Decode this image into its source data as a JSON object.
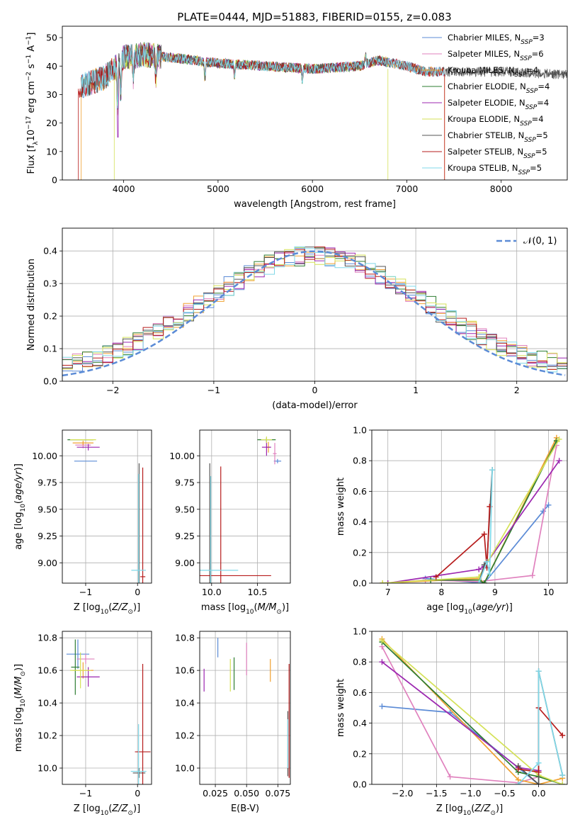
{
  "figure": {
    "title": "PLATE=0444, MJD=51883, FIBERID=0155, z=0.083"
  },
  "colors": {
    "chabrier_miles": "#5b8bd6",
    "salpeter_miles": "#e082be",
    "kroupa_miles": "#f0a030",
    "chabrier_elodie": "#2e7d32",
    "salpeter_elodie": "#9c27b0",
    "kroupa_elodie": "#d4e157",
    "chabrier_stelib": "#555555",
    "salpeter_stelib": "#b71c1c",
    "kroupa_stelib": "#80d8e8",
    "normal_curve": "#5b8bd6"
  },
  "chart_data": [
    {
      "id": "spectrum",
      "type": "line",
      "title": "PLATE=0444, MJD=51883, FIBERID=0155, z=0.083",
      "xlabel": "wavelength [Angstrom, rest frame]",
      "ylabel": "Flux [f_λ 10^-17 erg cm^-2 s^-1 A^-1]",
      "xlim": [
        3350,
        8700
      ],
      "ylim": [
        0,
        54
      ],
      "xticks": [
        4000,
        5000,
        6000,
        7000,
        8000
      ],
      "yticks": [
        0,
        10,
        20,
        30,
        40,
        50
      ],
      "grid": false,
      "legend_position": "top-right",
      "series": [
        {
          "name": "Chabrier MILES, N_SSP=3",
          "key": "chabrier_miles",
          "x_range": [
            3550,
            7400
          ]
        },
        {
          "name": "Salpeter MILES, N_SSP=6",
          "key": "salpeter_miles",
          "x_range": [
            3550,
            7400
          ]
        },
        {
          "name": "Kroupa MILES, N_SSP=4",
          "key": "kroupa_miles",
          "x_range": [
            3550,
            7400
          ]
        },
        {
          "name": "Chabrier ELODIE, N_SSP=4",
          "key": "chabrier_elodie",
          "x_range": [
            3900,
            6800
          ]
        },
        {
          "name": "Salpeter ELODIE, N_SSP=4",
          "key": "salpeter_elodie",
          "x_range": [
            3900,
            6800
          ]
        },
        {
          "name": "Kroupa ELODIE, N_SSP=4",
          "key": "kroupa_elodie",
          "x_range": [
            3900,
            6800
          ]
        },
        {
          "name": "Chabrier STELIB, N_SSP=5",
          "key": "chabrier_stelib",
          "x_range": [
            3550,
            8700
          ]
        },
        {
          "name": "Salpeter STELIB, N_SSP=5",
          "key": "salpeter_stelib",
          "x_range": [
            3520,
            7400
          ]
        },
        {
          "name": "Kroupa STELIB, N_SSP=5",
          "key": "kroupa_stelib",
          "x_range": [
            3550,
            7400
          ]
        }
      ],
      "continuum": {
        "x": [
          3550,
          3800,
          4000,
          4200,
          4500,
          5000,
          5500,
          6000,
          6500,
          6700,
          7000,
          7200,
          7400,
          8000,
          8700
        ],
        "y": [
          33,
          36,
          43,
          44,
          43,
          41,
          40,
          39,
          40,
          42,
          40,
          38,
          38,
          38,
          37
        ]
      }
    },
    {
      "id": "residuals",
      "type": "line",
      "xlabel": "(data-model)/error",
      "ylabel": "Normed distribution",
      "xlim": [
        -2.5,
        2.5
      ],
      "ylim": [
        0,
        0.47
      ],
      "xticks": [
        -2,
        -1,
        0,
        1,
        2
      ],
      "yticks": [
        0.0,
        0.1,
        0.2,
        0.3,
        0.4
      ],
      "grid": true,
      "legend": "𝒩(0, 1)",
      "legend_position": "top-right",
      "normal": {
        "mean": 0,
        "sigma": 1
      }
    },
    {
      "id": "age_vs_Z",
      "type": "scatter",
      "xlabel": "Z [log10(Z/Z⊙)]",
      "ylabel": "age  [log10(age/yr)]",
      "xlim": [
        -1.45,
        0.27
      ],
      "ylim": [
        8.81,
        10.24
      ],
      "xticks": [
        -1,
        0
      ],
      "yticks": [
        9.0,
        9.25,
        9.5,
        9.75,
        10.0
      ],
      "grid": true,
      "points": [
        {
          "key": "chabrier_miles",
          "x": -1.0,
          "y": 9.95,
          "xerr": 0.22,
          "yerr": 0.0
        },
        {
          "key": "salpeter_miles",
          "x": -1.05,
          "y": 10.1,
          "xerr": 0.15,
          "yerr": 0.03
        },
        {
          "key": "kroupa_miles",
          "x": -1.05,
          "y": 10.12,
          "xerr": 0.2,
          "yerr": 0.02
        },
        {
          "key": "chabrier_elodie",
          "x": -1.1,
          "y": 10.15,
          "xerr": 0.25,
          "yerr": 0.0
        },
        {
          "key": "salpeter_elodie",
          "x": -0.95,
          "y": 10.08,
          "xerr": 0.22,
          "yerr": 0.03
        },
        {
          "key": "kroupa_elodie",
          "x": -1.05,
          "y": 10.15,
          "xerr": 0.25,
          "yerr": 0.0
        },
        {
          "key": "chabrier_stelib",
          "x": 0.03,
          "y": 9.0,
          "xerr": 0.01,
          "yerr": 0.93
        },
        {
          "key": "salpeter_stelib",
          "x": 0.1,
          "y": 8.87,
          "xerr": 0.05,
          "yerr": 1.02
        },
        {
          "key": "kroupa_stelib",
          "x": 0.02,
          "y": 8.93,
          "xerr": 0.14,
          "yerr": 0.9
        }
      ]
    },
    {
      "id": "age_vs_mass",
      "type": "scatter",
      "xlabel": "mass [log10(M/M⊙)]",
      "ylabel": "",
      "xlim": [
        9.87,
        10.86
      ],
      "ylim": [
        8.81,
        10.24
      ],
      "xticks": [
        10.0,
        10.5
      ],
      "yticks": [
        9.0,
        9.25,
        9.5,
        9.75,
        10.0
      ],
      "grid": true,
      "points": [
        {
          "key": "chabrier_miles",
          "x": 10.72,
          "y": 9.95,
          "xerr": 0.04,
          "yerr": 0.02
        },
        {
          "key": "salpeter_miles",
          "x": 10.69,
          "y": 10.02,
          "xerr": 0.02,
          "yerr": 0.1
        },
        {
          "key": "kroupa_miles",
          "x": 10.62,
          "y": 10.08,
          "xerr": 0.02,
          "yerr": 0.05
        },
        {
          "key": "chabrier_elodie",
          "x": 10.6,
          "y": 10.15,
          "xerr": 0.1,
          "yerr": 0.02
        },
        {
          "key": "salpeter_elodie",
          "x": 10.6,
          "y": 10.08,
          "xerr": 0.05,
          "yerr": 0.08
        },
        {
          "key": "kroupa_elodie",
          "x": 10.6,
          "y": 10.15,
          "xerr": 0.06,
          "yerr": 0.03
        },
        {
          "key": "chabrier_stelib",
          "x": 9.98,
          "y": 8.93,
          "xerr": 0.01,
          "yerr": 1.0
        },
        {
          "key": "salpeter_stelib",
          "x": 10.1,
          "y": 8.88,
          "xerr": 0.55,
          "yerr": 1.02
        },
        {
          "key": "kroupa_stelib",
          "x": 9.99,
          "y": 8.93,
          "xerr": 0.3,
          "yerr": 0.88
        }
      ]
    },
    {
      "id": "weight_vs_age",
      "type": "line",
      "xlabel": "age  [log10(age/yr)]",
      "ylabel": "mass weight",
      "xlim": [
        6.7,
        10.35
      ],
      "ylim": [
        0,
        1.0
      ],
      "xticks": [
        7,
        8,
        9,
        10
      ],
      "yticks": [
        0.0,
        0.2,
        0.4,
        0.6,
        0.8,
        1.0
      ],
      "grid": true,
      "series": [
        {
          "key": "chabrier_miles",
          "x": [
            7.7,
            8.8,
            9.9,
            10.0
          ],
          "y": [
            0.03,
            0.0,
            0.47,
            0.51
          ]
        },
        {
          "key": "salpeter_miles",
          "x": [
            7.0,
            7.7,
            8.7,
            9.7,
            10.15
          ],
          "y": [
            0.0,
            0.02,
            0.01,
            0.05,
            0.9
          ]
        },
        {
          "key": "kroupa_miles",
          "x": [
            6.9,
            8.7,
            8.8,
            10.15
          ],
          "y": [
            0.0,
            0.03,
            0.0,
            0.95
          ]
        },
        {
          "key": "chabrier_elodie",
          "x": [
            7.8,
            8.7,
            8.8,
            10.15
          ],
          "y": [
            0.02,
            0.02,
            0.0,
            0.93
          ]
        },
        {
          "key": "salpeter_elodie",
          "x": [
            7.0,
            8.7,
            8.8,
            10.2
          ],
          "y": [
            0.0,
            0.09,
            0.11,
            0.8
          ]
        },
        {
          "key": "kroupa_elodie",
          "x": [
            6.9,
            8.7,
            10.2
          ],
          "y": [
            0.0,
            0.04,
            0.94
          ]
        },
        {
          "key": "chabrier_stelib",
          "x": [
            8.7,
            8.8,
            8.85,
            8.95
          ],
          "y": [
            0.0,
            0.12,
            0.14,
            0.74
          ]
        },
        {
          "key": "salpeter_stelib",
          "x": [
            7.9,
            8.8,
            8.85,
            8.9
          ],
          "y": [
            0.04,
            0.32,
            0.1,
            0.5
          ]
        },
        {
          "key": "kroupa_stelib",
          "x": [
            8.7,
            8.85,
            8.9,
            8.95
          ],
          "y": [
            0.0,
            0.14,
            0.06,
            0.74
          ]
        }
      ]
    },
    {
      "id": "mass_vs_Z",
      "type": "scatter",
      "xlabel": "Z [log10(Z/Z⊙)]",
      "ylabel": "mass [log10(M/M⊙)]",
      "xlim": [
        -1.45,
        0.27
      ],
      "ylim": [
        9.9,
        10.84
      ],
      "xticks": [
        -1,
        0
      ],
      "yticks": [
        10.0,
        10.2,
        10.4,
        10.6,
        10.8
      ],
      "grid": true,
      "points": [
        {
          "key": "chabrier_miles",
          "x": -1.15,
          "y": 10.7,
          "xerr": 0.22,
          "yerr": 0.09
        },
        {
          "key": "salpeter_miles",
          "x": -1.0,
          "y": 10.67,
          "xerr": 0.17,
          "yerr": 0.03
        },
        {
          "key": "kroupa_miles",
          "x": -1.05,
          "y": 10.6,
          "xerr": 0.2,
          "yerr": 0.05
        },
        {
          "key": "chabrier_elodie",
          "x": -1.2,
          "y": 10.62,
          "xerr": 0.08,
          "yerr": 0.17
        },
        {
          "key": "salpeter_elodie",
          "x": -0.95,
          "y": 10.56,
          "xerr": 0.22,
          "yerr": 0.06
        },
        {
          "key": "kroupa_elodie",
          "x": -1.1,
          "y": 10.6,
          "xerr": 0.2,
          "yerr": 0.11
        },
        {
          "key": "chabrier_stelib",
          "x": 0.03,
          "y": 9.97,
          "xerr": 0.12,
          "yerr": 0.03
        },
        {
          "key": "salpeter_stelib",
          "x": 0.1,
          "y": 10.1,
          "xerr": 0.15,
          "yerr": 0.54
        },
        {
          "key": "kroupa_stelib",
          "x": 0.02,
          "y": 9.98,
          "xerr": 0.15,
          "yerr": 0.29
        }
      ]
    },
    {
      "id": "mass_vs_ebv",
      "type": "scatter",
      "xlabel": "E(B-V)",
      "ylabel": "",
      "xlim": [
        0.0125,
        0.085
      ],
      "ylim": [
        9.9,
        10.84
      ],
      "xticks": [
        0.025,
        0.05,
        0.075
      ],
      "xticklabels": [
        "0.025",
        "0.050",
        "0.075"
      ],
      "yticks": [
        10.0,
        10.2,
        10.4,
        10.6,
        10.8
      ],
      "grid": true,
      "points": [
        {
          "key": "chabrier_miles",
          "x": 0.027,
          "y": 10.74,
          "xerr": 0.0,
          "yerr": 0.06
        },
        {
          "key": "salpeter_miles",
          "x": 0.05,
          "y": 10.67,
          "xerr": 0.0,
          "yerr": 0.1
        },
        {
          "key": "kroupa_miles",
          "x": 0.069,
          "y": 10.6,
          "xerr": 0.0,
          "yerr": 0.07
        },
        {
          "key": "chabrier_elodie",
          "x": 0.04,
          "y": 10.58,
          "xerr": 0.0,
          "yerr": 0.1
        },
        {
          "key": "salpeter_elodie",
          "x": 0.016,
          "y": 10.54,
          "xerr": 0.0,
          "yerr": 0.07
        },
        {
          "key": "kroupa_elodie",
          "x": 0.037,
          "y": 10.57,
          "xerr": 0.0,
          "yerr": 0.1
        },
        {
          "key": "chabrier_stelib",
          "x": 0.083,
          "y": 10.15,
          "xerr": 0.0,
          "yerr": 0.2
        },
        {
          "key": "salpeter_stelib",
          "x": 0.084,
          "y": 10.29,
          "xerr": 0.0,
          "yerr": 0.35
        },
        {
          "key": "kroupa_stelib",
          "x": 0.083,
          "y": 10.15,
          "xerr": 0.0,
          "yerr": 0.15
        }
      ]
    },
    {
      "id": "weight_vs_Z",
      "type": "line",
      "xlabel": "Z [log10(Z/Z⊙)]",
      "ylabel": "mass weight",
      "xlim": [
        -2.45,
        0.42
      ],
      "ylim": [
        0,
        1.0
      ],
      "xticks": [
        -2.0,
        -1.5,
        -1.0,
        -0.5,
        0.0
      ],
      "yticks": [
        0.0,
        0.2,
        0.4,
        0.6,
        0.8,
        1.0
      ],
      "grid": true,
      "series": [
        {
          "key": "chabrier_miles",
          "x": [
            -2.3,
            -1.3,
            0.0
          ],
          "y": [
            0.51,
            0.47,
            0.0
          ]
        },
        {
          "key": "salpeter_miles",
          "x": [
            -2.3,
            -1.3,
            -0.3,
            0.0
          ],
          "y": [
            0.9,
            0.05,
            0.01,
            0.05
          ]
        },
        {
          "key": "kroupa_miles",
          "x": [
            -2.3,
            -0.3,
            0.0,
            0.35
          ],
          "y": [
            0.95,
            0.03,
            0.0,
            0.04
          ]
        },
        {
          "key": "chabrier_elodie",
          "x": [
            -2.3,
            -0.3,
            0.0,
            0.35
          ],
          "y": [
            0.93,
            0.08,
            0.05,
            0.0
          ]
        },
        {
          "key": "salpeter_elodie",
          "x": [
            -2.3,
            -0.3,
            0.0
          ],
          "y": [
            0.8,
            0.11,
            0.09
          ]
        },
        {
          "key": "kroupa_elodie",
          "x": [
            -2.3,
            0.0,
            0.35
          ],
          "y": [
            0.94,
            0.06,
            0.0
          ]
        },
        {
          "key": "chabrier_stelib",
          "x": [
            -0.3,
            0.0,
            0.0,
            0.35
          ],
          "y": [
            0.12,
            0.0,
            0.74,
            0.06
          ]
        },
        {
          "key": "salpeter_stelib",
          "x": [
            -0.3,
            0.0,
            0.0,
            0.35
          ],
          "y": [
            0.1,
            0.08,
            0.5,
            0.32
          ]
        },
        {
          "key": "kroupa_stelib",
          "x": [
            -0.3,
            0.0,
            0.0,
            0.35
          ],
          "y": [
            0.0,
            0.14,
            0.74,
            0.06
          ]
        }
      ]
    }
  ]
}
